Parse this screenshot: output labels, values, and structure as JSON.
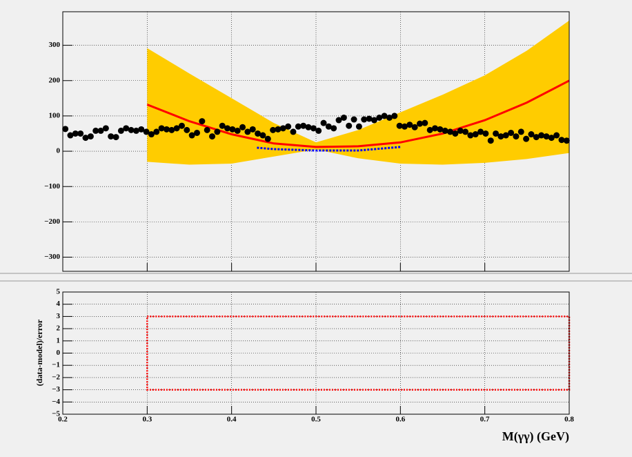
{
  "chart_data": [
    {
      "type": "scatter",
      "xlim": [
        0.2,
        0.8
      ],
      "ylim": [
        -340,
        395
      ],
      "xticks": [
        0.2,
        0.3,
        0.4,
        0.5,
        0.6,
        0.7,
        0.8
      ],
      "yticks": [
        {
          "value": -300,
          "label": "−300"
        },
        {
          "value": -200,
          "label": "−200"
        },
        {
          "value": -100,
          "label": "−100"
        },
        0,
        100,
        200,
        300
      ],
      "grid": true,
      "series": [
        {
          "color": "#000000",
          "x": [
            0.203,
            0.209,
            0.215,
            0.221,
            0.227,
            0.233,
            0.239,
            0.245,
            0.251,
            0.257,
            0.263,
            0.269,
            0.275,
            0.281,
            0.287,
            0.293,
            0.299,
            0.305,
            0.311,
            0.317,
            0.323,
            0.329,
            0.335,
            0.341,
            0.347,
            0.353,
            0.359,
            0.365,
            0.371,
            0.377,
            0.383,
            0.389,
            0.395,
            0.401,
            0.407,
            0.413,
            0.419,
            0.425,
            0.431,
            0.437,
            0.443,
            0.449,
            0.455,
            0.461,
            0.467,
            0.473,
            0.479,
            0.485,
            0.491,
            0.497,
            0.503,
            0.509,
            0.515,
            0.521,
            0.527,
            0.533,
            0.539,
            0.545,
            0.551,
            0.557,
            0.563,
            0.569,
            0.575,
            0.581,
            0.587,
            0.593,
            0.599,
            0.605,
            0.611,
            0.617,
            0.623,
            0.629,
            0.635,
            0.641,
            0.647,
            0.653,
            0.659,
            0.665,
            0.671,
            0.677,
            0.683,
            0.689,
            0.695,
            0.701,
            0.707,
            0.713,
            0.719,
            0.725,
            0.731,
            0.737,
            0.743,
            0.749,
            0.755,
            0.761,
            0.767,
            0.773,
            0.779,
            0.785,
            0.791,
            0.797
          ],
          "values": [
            63,
            45,
            50,
            50,
            38,
            42,
            58,
            58,
            65,
            42,
            40,
            58,
            65,
            60,
            58,
            62,
            55,
            48,
            55,
            65,
            62,
            60,
            65,
            72,
            60,
            45,
            52,
            85,
            60,
            42,
            55,
            72,
            65,
            62,
            58,
            68,
            55,
            62,
            50,
            45,
            35,
            60,
            62,
            65,
            70,
            55,
            70,
            72,
            68,
            65,
            58,
            80,
            70,
            65,
            88,
            95,
            72,
            90,
            70,
            90,
            92,
            88,
            95,
            100,
            95,
            100,
            72,
            70,
            75,
            68,
            78,
            80,
            60,
            65,
            62,
            58,
            55,
            50,
            58,
            55,
            45,
            48,
            55,
            50,
            30,
            50,
            42,
            45,
            52,
            42,
            55,
            35,
            48,
            40,
            45,
            42,
            38,
            45,
            32,
            30
          ]
        }
      ],
      "band": {
        "color": "#ffcc00",
        "x": [
          0.3,
          0.35,
          0.4,
          0.45,
          0.5,
          0.55,
          0.6,
          0.65,
          0.7,
          0.75,
          0.8
        ],
        "upper": [
          292,
          220,
          150,
          80,
          25,
          60,
          110,
          160,
          215,
          285,
          370
        ],
        "lower": [
          -30,
          -38,
          -35,
          -15,
          5,
          -20,
          -35,
          -38,
          -33,
          -22,
          -5
        ]
      },
      "curves": [
        {
          "color": "#ff0000",
          "x": [
            0.3,
            0.35,
            0.4,
            0.45,
            0.5,
            0.55,
            0.6,
            0.65,
            0.7,
            0.75,
            0.8
          ],
          "values": [
            132,
            85,
            48,
            22,
            12,
            14,
            25,
            50,
            88,
            138,
            200
          ]
        },
        {
          "color": "#0000ff",
          "x": [
            0.43,
            0.45,
            0.5,
            0.55,
            0.6
          ],
          "values": [
            10,
            6,
            2,
            2,
            12
          ]
        }
      ]
    },
    {
      "type": "line",
      "ylabel": "(data-model)/error",
      "xlabel": "M(γγ) (GeV)",
      "xlim": [
        0.2,
        0.8
      ],
      "ylim": [
        -5,
        5
      ],
      "xticks": [
        0.2,
        0.3,
        0.4,
        0.5,
        0.6,
        0.7,
        0.8
      ],
      "yticks": [
        {
          "value": -5,
          "label": "−5"
        },
        {
          "value": -4,
          "label": "−4"
        },
        {
          "value": -3,
          "label": "−3"
        },
        {
          "value": -2,
          "label": "−2"
        },
        {
          "value": -1,
          "label": "−1"
        },
        0,
        1,
        2,
        3,
        4,
        5
      ],
      "grid": true,
      "series": [
        {
          "color": "#ff0000",
          "x": [
            0.3,
            0.8,
            0.8,
            0.3,
            0.3
          ],
          "values": [
            3,
            3,
            -3,
            -3,
            3
          ]
        }
      ]
    }
  ]
}
